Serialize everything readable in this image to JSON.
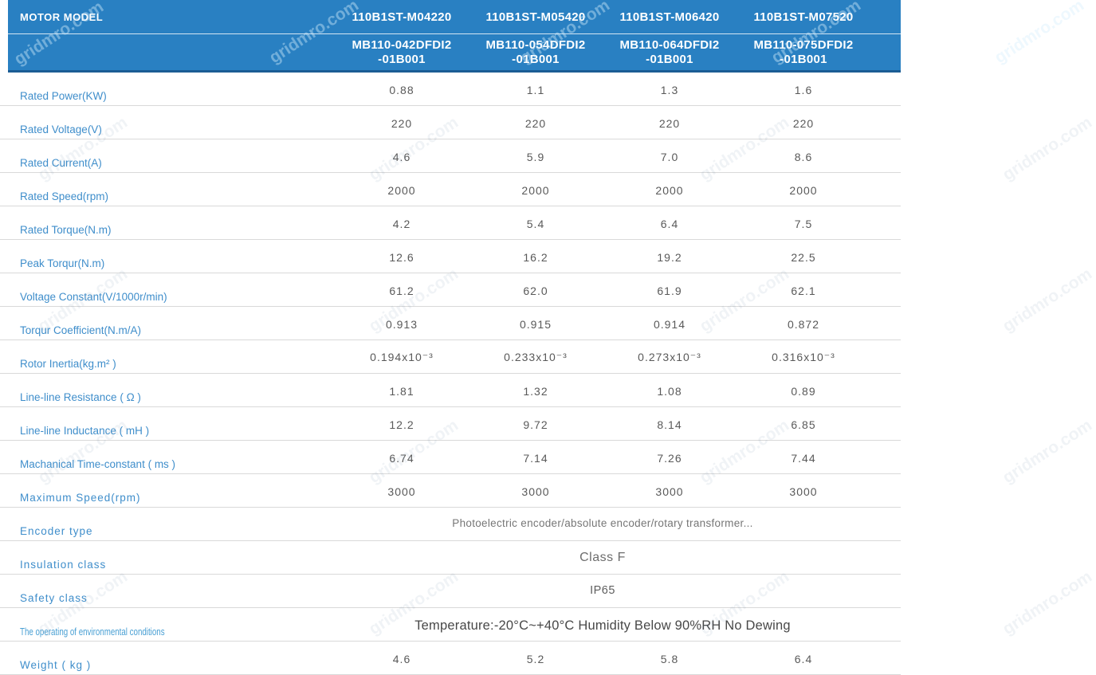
{
  "watermark": {
    "text": "gridmro.com"
  },
  "header": {
    "row_label": "MOTOR MODEL",
    "models": [
      "110B1ST-M04220",
      "110B1ST-M05420",
      "110B1ST-M06420",
      "110B1ST-M07520"
    ],
    "part_numbers": [
      "MB110-042DFDI2\n-01B001",
      "MB110-054DFDI2\n-01B001",
      "MB110-064DFDI2\n-01B001",
      "MB110-075DFDI2\n-01B001"
    ]
  },
  "rows": [
    {
      "label": "Rated Power(KW)",
      "values": [
        "0.88",
        "1.1",
        "1.3",
        "1.6"
      ]
    },
    {
      "label": "Rated Voltage(V)",
      "values": [
        "220",
        "220",
        "220",
        "220"
      ]
    },
    {
      "label": "Rated Current(A)",
      "values": [
        "4.6",
        "5.9",
        "7.0",
        "8.6"
      ]
    },
    {
      "label": "Rated Speed(rpm)",
      "values": [
        "2000",
        "2000",
        "2000",
        "2000"
      ]
    },
    {
      "label": "Rated Torque(N.m)",
      "values": [
        "4.2",
        "5.4",
        "6.4",
        "7.5"
      ]
    },
    {
      "label": "Peak Torqur(N.m)",
      "values": [
        "12.6",
        "16.2",
        "19.2",
        "22.5"
      ]
    },
    {
      "label": "Voltage Constant(V/1000r/min)",
      "values": [
        "61.2",
        "62.0",
        "61.9",
        "62.1"
      ]
    },
    {
      "label": "Torqur Coefficient(N.m/A)",
      "values": [
        "0.913",
        "0.915",
        "0.914",
        "0.872"
      ]
    },
    {
      "label": "Rotor Inertia(kg.m² )",
      "values": [
        "0.194x10⁻³",
        "0.233x10⁻³",
        "0.273x10⁻³",
        "0.316x10⁻³"
      ]
    },
    {
      "label": "Line-line Resistance ( Ω )",
      "values": [
        "1.81",
        "1.32",
        "1.08",
        "0.89"
      ]
    },
    {
      "label": "Line-line Inductance ( mH )",
      "values": [
        "12.2",
        "9.72",
        "8.14",
        "6.85"
      ]
    },
    {
      "label": "Machanical Time-constant ( ms )",
      "values": [
        "6.74",
        "7.14",
        "7.26",
        "7.44"
      ]
    },
    {
      "label": "Maximum Speed(rpm)",
      "values": [
        "3000",
        "3000",
        "3000",
        "3000"
      ]
    },
    {
      "label": "Encoder type",
      "merged": "Photoelectric encoder/absolute encoder/rotary transformer..."
    },
    {
      "label": "Insulation class",
      "merged": "Class F"
    },
    {
      "label": "Safety class",
      "merged": "IP65"
    },
    {
      "label": "The operating of environmental conditions",
      "merged": "Temperature:-20°C~+40°C  Humidity Below 90%RH No Dewing"
    },
    {
      "label": "Weight ( kg )",
      "values": [
        "4.6",
        "5.2",
        "5.8",
        "6.4"
      ]
    }
  ]
}
